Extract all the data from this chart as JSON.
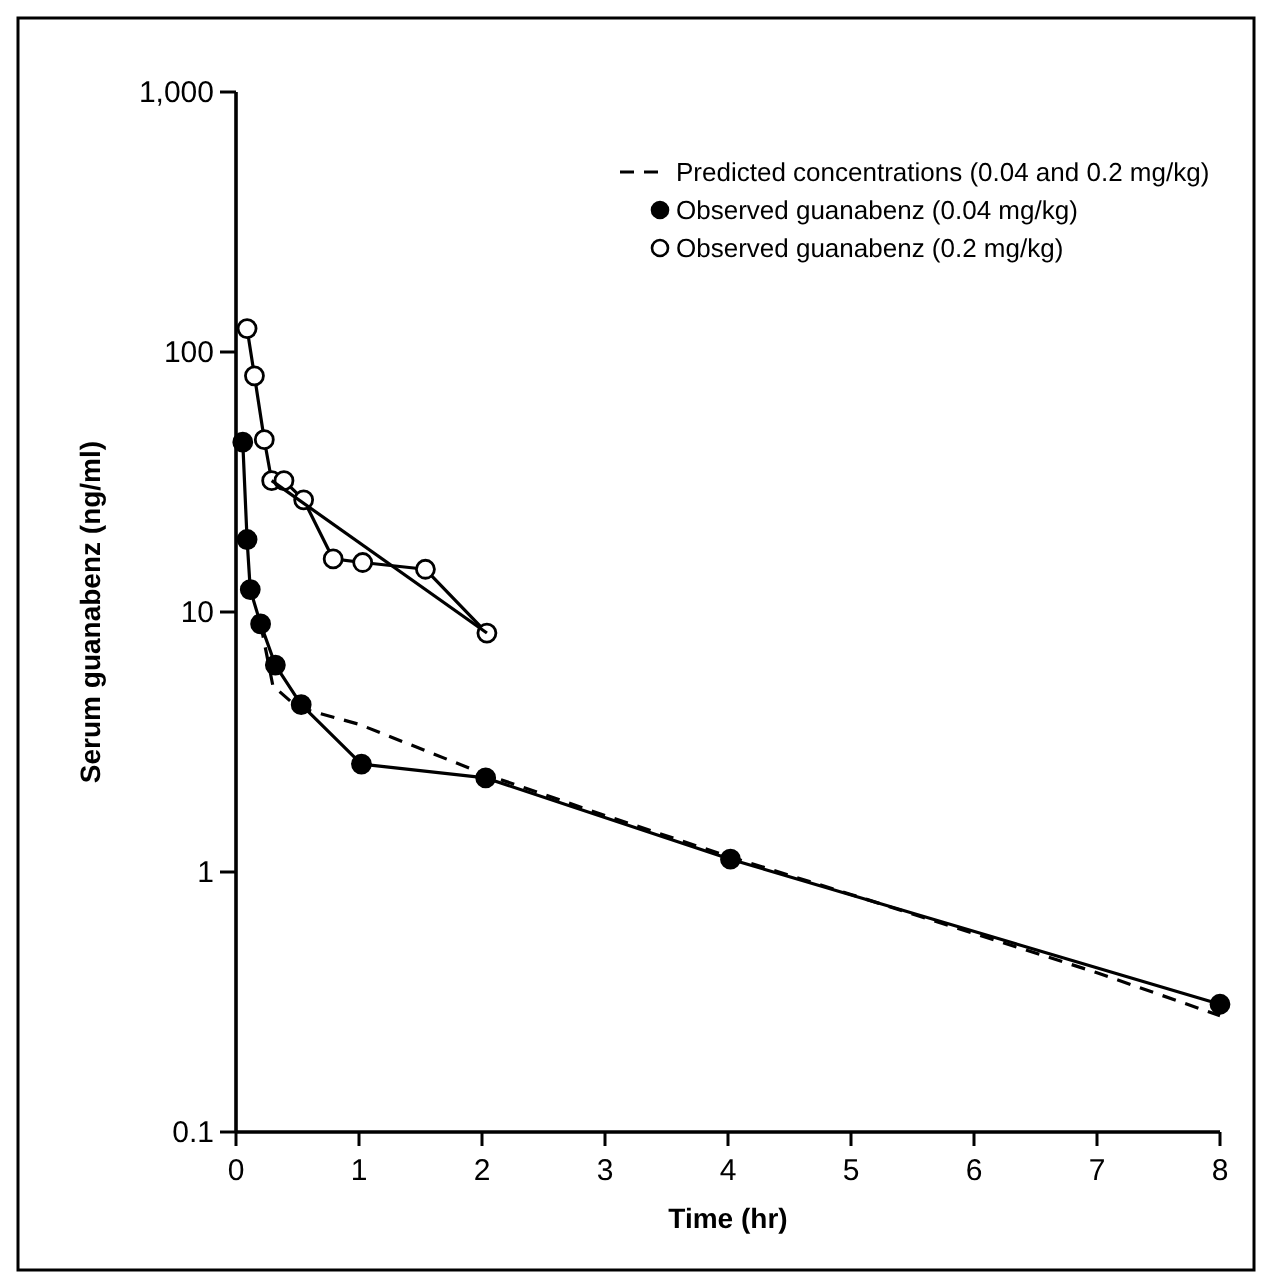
{
  "chart_data": {
    "type": "line",
    "xlabel": "Time (hr)",
    "ylabel": "Serum guanabenz (ng/ml)",
    "log": "y",
    "xlim": [
      0,
      8
    ],
    "xticks": [
      0,
      1,
      2,
      3,
      4,
      5,
      6,
      7,
      8
    ],
    "ylim": [
      0.1,
      1000
    ],
    "yticks": [
      0.1,
      1,
      10,
      100,
      {
        "value": 1000,
        "label": "1,000"
      }
    ],
    "legend": "top right",
    "grid": false,
    "series": [
      {
        "name": "Predicted concentrations (0.04 and 0.2 mg/kg)",
        "color": "#000000",
        "line_style": "dashed",
        "marker": "none",
        "x": [
          0.2,
          0.3,
          0.5,
          1,
          2,
          3,
          4,
          5,
          6,
          7,
          8
        ],
        "values": [
          9,
          5.2,
          4.3,
          3.7,
          2.4,
          1.65,
          1.15,
          0.82,
          0.58,
          0.41,
          0.28
        ]
      },
      {
        "name": "Observed guanabenz (0.04 mg/kg)",
        "color": "#000000",
        "line_style": "solid",
        "marker": "circle",
        "x": [
          0.055,
          0.09,
          0.116,
          0.2,
          0.32,
          0.53,
          1.02,
          2.03,
          4.02,
          8
        ],
        "values": [
          45,
          19,
          12.2,
          9,
          6.25,
          4.4,
          2.6,
          2.3,
          1.12,
          0.31
        ]
      },
      {
        "name": "Observed guanabenz (0.2 mg/kg)",
        "color": "#ffffff",
        "line_style": "solid",
        "marker": "circle",
        "x": [
          0.09,
          0.15,
          0.23,
          0.29,
          0.39,
          0.55,
          0.79,
          1.03,
          1.54,
          2.04
        ],
        "values": [
          123,
          81,
          46,
          32,
          32,
          27,
          16,
          15.5,
          14.6,
          8.3
        ]
      },
      {
        "color": "#000000",
        "line_style": "solid",
        "marker": "none",
        "x": [
          0.29,
          2.04
        ],
        "values": [
          32,
          8.3
        ]
      }
    ]
  }
}
